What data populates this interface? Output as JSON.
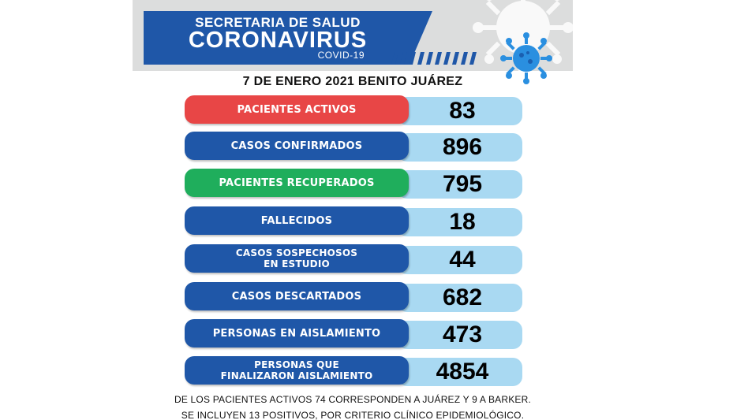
{
  "header": {
    "line1": "SECRETARIA DE SALUD",
    "line2": "CORONAVIRUS",
    "line3": "COVID-19"
  },
  "date_line": "7 DE ENERO 2021 BENITO JUÁREZ",
  "stats": [
    {
      "label": "PACIENTES ACTIVOS",
      "value": "83",
      "color": "#e84646"
    },
    {
      "label": "CASOS CONFIRMADOS",
      "value": "896",
      "color": "#1f57a8"
    },
    {
      "label": "PACIENTES RECUPERADOS",
      "value": "795",
      "color": "#1fae5c"
    },
    {
      "label": "FALLECIDOS",
      "value": "18",
      "color": "#1f57a8"
    },
    {
      "label_l1": "CASOS SOSPECHOSOS",
      "label_l2": "EN ESTUDIO",
      "value": "44",
      "color": "#1f57a8"
    },
    {
      "label": "CASOS DESCARTADOS",
      "value": "682",
      "color": "#1f57a8"
    },
    {
      "label": "PERSONAS EN AISLAMIENTO",
      "value": "473",
      "color": "#1f57a8"
    },
    {
      "label_l1": "PERSONAS QUE",
      "label_l2": "FINALIZARON AISLAMIENTO",
      "value": "4854",
      "color": "#1f57a8"
    }
  ],
  "footer": {
    "line1": "DE LOS PACIENTES ACTIVOS 74 CORRESPONDEN A JUÁREZ Y 9 A BARKER.",
    "line2": "SE INCLUYEN 13 POSITIVOS, POR CRITERIO CLÍNICO EPIDEMIOLÓGICO."
  },
  "icons": [
    "virus-icon",
    "virus-background-icon"
  ]
}
